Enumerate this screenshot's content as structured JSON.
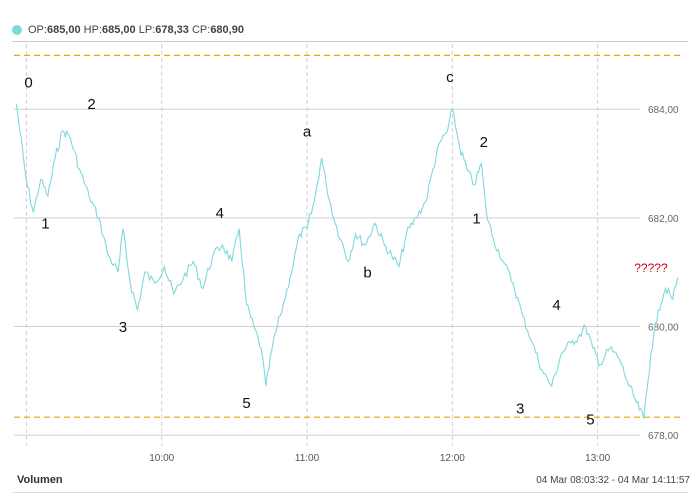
{
  "legend": {
    "op_label": "OP:",
    "op_value": "685,00",
    "hp_label": "HP:",
    "hp_value": "685,00",
    "lp_label": "LP:",
    "lp_value": "678,33",
    "cp_label": "CP:",
    "cp_value": "680,90"
  },
  "footer": {
    "volume_label": "Volumen",
    "range": "04 Mar 08:03:32 - 04 Mar 14:11:57"
  },
  "colors": {
    "line": "#7fd8dc",
    "dashed_levels": "#f0a500",
    "grid": "#cfcfcf",
    "question_marks": "#d0021b"
  },
  "chart_data": {
    "type": "line",
    "title": "",
    "xlabel": "",
    "ylabel": "",
    "x_ticks": [
      "10:00",
      "11:00",
      "12:00",
      "13:00"
    ],
    "y_ticks": [
      "678,00",
      "680,00",
      "682,00",
      "684,00"
    ],
    "ylim": [
      677.8,
      685.2
    ],
    "xlim": [
      "08:59",
      "13:34"
    ],
    "grid": true,
    "reference_levels": [
      684.99,
      678.33
    ],
    "series": [
      {
        "points": [
          [
            "09:00",
            684.1
          ],
          [
            "09:04",
            682.7
          ],
          [
            "09:07",
            682.1
          ],
          [
            "09:10",
            682.7
          ],
          [
            "09:13",
            682.4
          ],
          [
            "09:16",
            683.1
          ],
          [
            "09:19",
            683.6
          ],
          [
            "09:22",
            683.5
          ],
          [
            "09:26",
            682.9
          ],
          [
            "09:30",
            682.4
          ],
          [
            "09:34",
            682.0
          ],
          [
            "09:38",
            681.3
          ],
          [
            "09:42",
            681.0
          ],
          [
            "09:44",
            681.8
          ],
          [
            "09:47",
            680.8
          ],
          [
            "09:50",
            680.3
          ],
          [
            "09:53",
            681.0
          ],
          [
            "09:57",
            680.8
          ],
          [
            "10:01",
            681.1
          ],
          [
            "10:05",
            680.6
          ],
          [
            "10:09",
            680.9
          ],
          [
            "10:13",
            681.2
          ],
          [
            "10:17",
            680.7
          ],
          [
            "10:21",
            681.3
          ],
          [
            "10:25",
            681.5
          ],
          [
            "10:29",
            681.2
          ],
          [
            "10:32",
            681.8
          ],
          [
            "10:35",
            680.4
          ],
          [
            "10:38",
            680.0
          ],
          [
            "10:41",
            679.6
          ],
          [
            "10:43",
            678.9
          ],
          [
            "10:46",
            679.7
          ],
          [
            "10:49",
            680.2
          ],
          [
            "10:53",
            680.9
          ],
          [
            "10:57",
            681.7
          ],
          [
            "11:00",
            681.8
          ],
          [
            "11:03",
            682.3
          ],
          [
            "11:06",
            683.1
          ],
          [
            "11:08",
            682.6
          ],
          [
            "11:11",
            682.0
          ],
          [
            "11:14",
            681.6
          ],
          [
            "11:17",
            681.2
          ],
          [
            "11:20",
            681.7
          ],
          [
            "11:24",
            681.5
          ],
          [
            "11:28",
            681.9
          ],
          [
            "11:32",
            681.5
          ],
          [
            "11:35",
            681.3
          ],
          [
            "11:38",
            681.1
          ],
          [
            "11:41",
            681.7
          ],
          [
            "11:45",
            682.0
          ],
          [
            "11:49",
            682.3
          ],
          [
            "11:52",
            682.9
          ],
          [
            "11:55",
            683.4
          ],
          [
            "11:58",
            683.6
          ],
          [
            "12:00",
            684.0
          ],
          [
            "12:03",
            683.3
          ],
          [
            "12:06",
            682.9
          ],
          [
            "12:09",
            682.6
          ],
          [
            "12:12",
            683.0
          ],
          [
            "12:14",
            682.1
          ],
          [
            "12:17",
            681.6
          ],
          [
            "12:21",
            681.2
          ],
          [
            "12:25",
            680.8
          ],
          [
            "12:29",
            680.2
          ],
          [
            "12:33",
            679.7
          ],
          [
            "12:37",
            679.2
          ],
          [
            "12:41",
            678.9
          ],
          [
            "12:45",
            679.5
          ],
          [
            "12:49",
            679.7
          ],
          [
            "12:52",
            679.8
          ],
          [
            "12:55",
            680.0
          ],
          [
            "12:58",
            679.6
          ],
          [
            "13:01",
            679.3
          ],
          [
            "13:05",
            679.6
          ],
          [
            "13:09",
            679.4
          ],
          [
            "13:13",
            678.9
          ],
          [
            "13:16",
            678.6
          ],
          [
            "13:19",
            678.3
          ],
          [
            "13:22",
            679.5
          ],
          [
            "13:25",
            680.3
          ],
          [
            "13:28",
            680.7
          ],
          [
            "13:31",
            680.5
          ],
          [
            "13:33",
            680.9
          ]
        ]
      }
    ],
    "annotations": [
      {
        "text": "0",
        "x": "09:05",
        "y": 684.4
      },
      {
        "text": "1",
        "x": "09:12",
        "y": 681.8
      },
      {
        "text": "2",
        "x": "09:31",
        "y": 684.0
      },
      {
        "text": "3",
        "x": "09:44",
        "y": 679.9
      },
      {
        "text": "4",
        "x": "10:24",
        "y": 682.0
      },
      {
        "text": "5",
        "x": "10:35",
        "y": 678.5
      },
      {
        "text": "a",
        "x": "11:00",
        "y": 683.5
      },
      {
        "text": "b",
        "x": "11:25",
        "y": 680.9
      },
      {
        "text": "c",
        "x": "11:59",
        "y": 684.5
      },
      {
        "text": "2",
        "x": "12:13",
        "y": 683.3
      },
      {
        "text": "1",
        "x": "12:10",
        "y": 681.9
      },
      {
        "text": "3",
        "x": "12:28",
        "y": 678.4
      },
      {
        "text": "4",
        "x": "12:43",
        "y": 680.3
      },
      {
        "text": "5",
        "x": "12:57",
        "y": 678.2
      },
      {
        "text": "?????",
        "x": "13:22",
        "y": 681.0,
        "color": "#d0021b"
      }
    ]
  }
}
